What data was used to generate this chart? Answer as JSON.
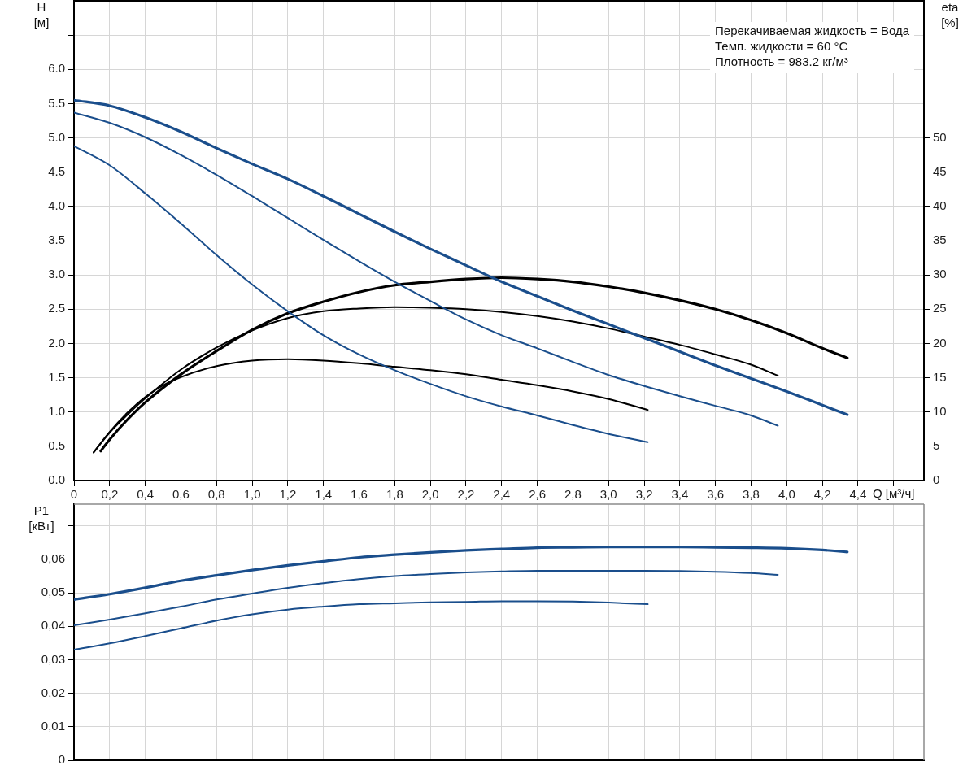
{
  "chart_data": [
    {
      "type": "line",
      "xlabel": "Q [м³/ч]",
      "ylabel": "H [м]",
      "y2label": "eta [%]",
      "xlim": [
        0,
        4.77
      ],
      "xticks": [
        0,
        {
          "value": 0.2,
          "label": "0,2"
        },
        {
          "value": 0.4,
          "label": "0,4"
        },
        {
          "value": 0.6,
          "label": "0,6"
        },
        {
          "value": 0.8,
          "label": "0,8"
        },
        {
          "value": 1,
          "label": "1,0"
        },
        {
          "value": 1.2,
          "label": "1,2"
        },
        {
          "value": 1.4,
          "label": "1,4"
        },
        {
          "value": 1.6,
          "label": "1,6"
        },
        {
          "value": 1.8,
          "label": "1,8"
        },
        {
          "value": 2,
          "label": "2,0"
        },
        {
          "value": 2.2,
          "label": "2,2"
        },
        {
          "value": 2.4,
          "label": "2,4"
        },
        {
          "value": 2.6,
          "label": "2,6"
        },
        {
          "value": 2.8,
          "label": "2,8"
        },
        {
          "value": 3,
          "label": "3,0"
        },
        {
          "value": 3.2,
          "label": "3,2"
        },
        {
          "value": 3.4,
          "label": "3,4"
        },
        {
          "value": 3.6,
          "label": "3,6"
        },
        {
          "value": 3.8,
          "label": "3,8"
        },
        {
          "value": 4,
          "label": "4,0"
        },
        {
          "value": 4.2,
          "label": "4,2"
        },
        {
          "value": 4.4,
          "label": "4,4"
        },
        {
          "value": 4.6,
          "label": null
        }
      ],
      "ylim": [
        0,
        7
      ],
      "yticks": [
        {
          "value": 0,
          "label": "0.0"
        },
        0.5,
        {
          "value": 1,
          "label": "1.0"
        },
        1.5,
        {
          "value": 2,
          "label": "2.0"
        },
        2.5,
        {
          "value": 3,
          "label": "3.0"
        },
        3.5,
        {
          "value": 4,
          "label": "4.0"
        },
        4.5,
        {
          "value": 5,
          "label": "5.0"
        },
        5.5,
        {
          "value": 6,
          "label": "6.0"
        },
        {
          "value": 6.5,
          "label": null
        }
      ],
      "y2lim": [
        0,
        70
      ],
      "y2ticks": [
        0,
        5,
        10,
        15,
        20,
        25,
        30,
        35,
        40,
        45,
        50
      ],
      "grid": true,
      "annotations": [
        "Перекачиваемая жидкость = Вода",
        "Темп. жидкости = 60 °C",
        "Плотность = 983.2 кг/м³"
      ],
      "series": [
        {
          "color": "#1a4e8c",
          "x": [
            0,
            0.2,
            0.4,
            0.6,
            0.8,
            1,
            1.2,
            1.4,
            1.6,
            1.8,
            2,
            2.2,
            2.4,
            2.6,
            2.8,
            3,
            3.2,
            3.4,
            3.6,
            3.8,
            4,
            4.2,
            4.34
          ],
          "values": [
            5.55,
            5.47,
            5.3,
            5.09,
            4.85,
            4.62,
            4.4,
            4.15,
            3.89,
            3.63,
            3.38,
            3.14,
            2.9,
            2.69,
            2.48,
            2.28,
            2.08,
            1.88,
            1.68,
            1.49,
            1.3,
            1.1,
            0.96
          ]
        },
        {
          "color": "#1a4e8c",
          "x": [
            0,
            0.2,
            0.4,
            0.6,
            0.8,
            1,
            1.2,
            1.4,
            1.6,
            1.8,
            2,
            2.2,
            2.4,
            2.6,
            2.8,
            3,
            3.2,
            3.4,
            3.6,
            3.8,
            3.95
          ],
          "values": [
            5.37,
            5.22,
            5.01,
            4.75,
            4.46,
            4.15,
            3.83,
            3.51,
            3.2,
            2.9,
            2.62,
            2.35,
            2.12,
            1.93,
            1.73,
            1.54,
            1.38,
            1.23,
            1.09,
            0.95,
            0.8
          ]
        },
        {
          "color": "#1a4e8c",
          "x": [
            0,
            0.2,
            0.4,
            0.6,
            0.8,
            1,
            1.2,
            1.4,
            1.6,
            1.8,
            2,
            2.2,
            2.4,
            2.6,
            2.8,
            3,
            3.22
          ],
          "values": [
            4.88,
            4.6,
            4.19,
            3.75,
            3.29,
            2.86,
            2.47,
            2.12,
            1.84,
            1.61,
            1.41,
            1.23,
            1.08,
            0.95,
            0.81,
            0.68,
            0.56
          ]
        },
        {
          "color": "#000000",
          "axis": "y2",
          "x": [
            0.15,
            0.2,
            0.3,
            0.4,
            0.6,
            0.8,
            1,
            1.2,
            1.4,
            1.6,
            1.8,
            2,
            2.2,
            2.4,
            2.6,
            2.8,
            3,
            3.2,
            3.4,
            3.6,
            3.8,
            4,
            4.2,
            4.34
          ],
          "values": [
            4.3,
            6.0,
            8.9,
            11.4,
            15.5,
            18.9,
            22.0,
            24.4,
            26.1,
            27.5,
            28.5,
            29.0,
            29.4,
            29.6,
            29.4,
            29.0,
            28.3,
            27.4,
            26.3,
            25.0,
            23.4,
            21.5,
            19.3,
            17.9
          ]
        },
        {
          "color": "#000000",
          "axis": "y2",
          "x": [
            0.11,
            0.2,
            0.3,
            0.4,
            0.6,
            0.8,
            1,
            1.2,
            1.4,
            1.6,
            1.8,
            2,
            2.2,
            2.4,
            2.6,
            2.8,
            3,
            3.2,
            3.4,
            3.6,
            3.8,
            3.95
          ],
          "values": [
            4.1,
            7.0,
            9.6,
            12.0,
            16.2,
            19.4,
            21.9,
            23.7,
            24.7,
            25.1,
            25.3,
            25.2,
            25.0,
            24.6,
            24.0,
            23.2,
            22.2,
            21.0,
            19.8,
            18.4,
            16.9,
            15.3
          ]
        },
        {
          "color": "#000000",
          "axis": "y2",
          "x": [
            0.11,
            0.2,
            0.3,
            0.4,
            0.5,
            0.6,
            0.8,
            1,
            1.2,
            1.4,
            1.6,
            1.8,
            2,
            2.2,
            2.4,
            2.6,
            2.8,
            3,
            3.22
          ],
          "values": [
            4.1,
            7.1,
            9.9,
            12.2,
            13.9,
            15.1,
            16.7,
            17.5,
            17.7,
            17.5,
            17.1,
            16.6,
            16.1,
            15.5,
            14.7,
            13.9,
            13.0,
            11.9,
            10.3
          ]
        }
      ]
    },
    {
      "type": "line",
      "ylabel": "P1 [кВт]",
      "xlim": [
        0,
        4.77
      ],
      "xticks": [
        {
          "value": 0,
          "label": null
        },
        {
          "value": 0.2,
          "label": null
        },
        {
          "value": 0.4,
          "label": null
        },
        {
          "value": 0.6,
          "label": null
        },
        {
          "value": 0.8,
          "label": null
        },
        {
          "value": 1,
          "label": null
        },
        {
          "value": 1.2,
          "label": null
        },
        {
          "value": 1.4,
          "label": null
        },
        {
          "value": 1.6,
          "label": null
        },
        {
          "value": 1.8,
          "label": null
        },
        {
          "value": 2,
          "label": null
        },
        {
          "value": 2.2,
          "label": null
        },
        {
          "value": 2.4,
          "label": null
        },
        {
          "value": 2.6,
          "label": null
        },
        {
          "value": 2.8,
          "label": null
        },
        {
          "value": 3,
          "label": null
        },
        {
          "value": 3.2,
          "label": null
        },
        {
          "value": 3.4,
          "label": null
        },
        {
          "value": 3.6,
          "label": null
        },
        {
          "value": 3.8,
          "label": null
        },
        {
          "value": 4,
          "label": null
        },
        {
          "value": 4.2,
          "label": null
        },
        {
          "value": 4.4,
          "label": null
        },
        {
          "value": 4.6,
          "label": null
        }
      ],
      "ylim": [
        0,
        0.0765
      ],
      "yticks": [
        0,
        {
          "value": 0.01,
          "label": "0,01"
        },
        {
          "value": 0.02,
          "label": "0,02"
        },
        {
          "value": 0.03,
          "label": "0,03"
        },
        {
          "value": 0.04,
          "label": "0,04"
        },
        {
          "value": 0.05,
          "label": "0,05"
        },
        {
          "value": 0.06,
          "label": "0,06"
        },
        {
          "value": 0.07,
          "label": null
        }
      ],
      "grid": true,
      "tick_labels": "y",
      "series": [
        {
          "color": "#1a4e8c",
          "x": [
            0,
            0.2,
            0.4,
            0.6,
            0.8,
            1,
            1.2,
            1.4,
            1.6,
            1.8,
            2,
            2.2,
            2.4,
            2.6,
            2.8,
            3,
            3.2,
            3.4,
            3.6,
            3.8,
            4,
            4.2,
            4.34
          ],
          "values": [
            0.048,
            0.0496,
            0.0515,
            0.0536,
            0.0552,
            0.0568,
            0.0582,
            0.0594,
            0.0606,
            0.0614,
            0.0621,
            0.0627,
            0.0631,
            0.0635,
            0.0636,
            0.0637,
            0.0637,
            0.0637,
            0.0636,
            0.0635,
            0.0633,
            0.0628,
            0.0622
          ]
        },
        {
          "color": "#1a4e8c",
          "x": [
            0,
            0.2,
            0.4,
            0.6,
            0.8,
            1,
            1.2,
            1.4,
            1.6,
            1.8,
            2,
            2.2,
            2.4,
            2.6,
            2.8,
            3,
            3.2,
            3.4,
            3.6,
            3.8,
            3.95
          ],
          "values": [
            0.0403,
            0.042,
            0.0439,
            0.0459,
            0.048,
            0.0498,
            0.0515,
            0.0529,
            0.0541,
            0.055,
            0.0556,
            0.0561,
            0.0564,
            0.0566,
            0.0566,
            0.0566,
            0.0566,
            0.0565,
            0.0563,
            0.0559,
            0.0554
          ]
        },
        {
          "color": "#1a4e8c",
          "x": [
            0,
            0.2,
            0.4,
            0.6,
            0.8,
            1,
            1.2,
            1.4,
            1.6,
            1.8,
            2,
            2.2,
            2.4,
            2.6,
            2.8,
            3,
            3.22
          ],
          "values": [
            0.033,
            0.0349,
            0.0371,
            0.0394,
            0.0417,
            0.0436,
            0.045,
            0.0459,
            0.0466,
            0.0469,
            0.0472,
            0.0473,
            0.0475,
            0.0475,
            0.0474,
            0.0471,
            0.0466
          ]
        }
      ]
    }
  ]
}
